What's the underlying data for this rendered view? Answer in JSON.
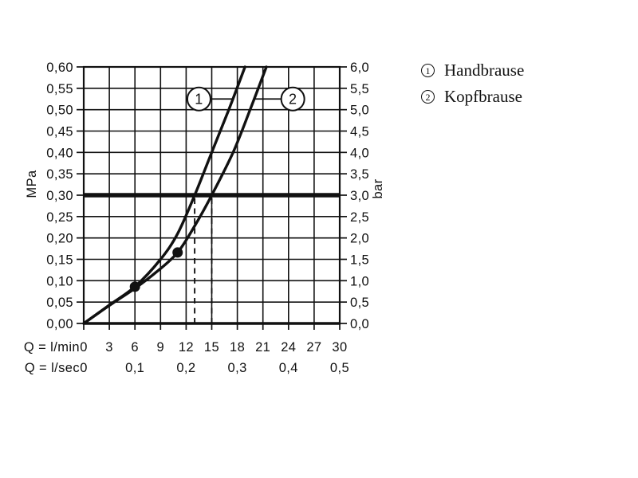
{
  "legend": {
    "items": [
      {
        "symbol": "1",
        "label": "Handbrause"
      },
      {
        "symbol": "2",
        "label": "Kopfbrause"
      }
    ]
  },
  "chart_data": {
    "type": "line",
    "title": "",
    "description": "Flow rate vs pressure performance curves",
    "xlim_lmin": [
      0,
      30
    ],
    "ylim_mpa": [
      0,
      0.6
    ],
    "grid": true,
    "x_axis_rows": [
      {
        "label": "Q = l/min",
        "ticks": [
          {
            "label": "0",
            "q": 0
          },
          {
            "label": "3",
            "q": 3
          },
          {
            "label": "6",
            "q": 6
          },
          {
            "label": "9",
            "q": 9
          },
          {
            "label": "12",
            "q": 12
          },
          {
            "label": "15",
            "q": 15
          },
          {
            "label": "18",
            "q": 18
          },
          {
            "label": "21",
            "q": 21
          },
          {
            "label": "24",
            "q": 24
          },
          {
            "label": "27",
            "q": 27
          },
          {
            "label": "30",
            "q": 30
          }
        ]
      },
      {
        "label": "Q = l/sec",
        "ticks": [
          {
            "label": "0",
            "q": 0
          },
          {
            "label": "0,1",
            "q": 6
          },
          {
            "label": "0,2",
            "q": 12
          },
          {
            "label": "0,3",
            "q": 18
          },
          {
            "label": "0,4",
            "q": 24
          },
          {
            "label": "0,5",
            "q": 30
          }
        ]
      }
    ],
    "y_axis_left": {
      "title": "MPa",
      "ticks": [
        {
          "label": "0,60",
          "p": 0.6
        },
        {
          "label": "0,55",
          "p": 0.55
        },
        {
          "label": "0,50",
          "p": 0.5
        },
        {
          "label": "0,45",
          "p": 0.45
        },
        {
          "label": "0,40",
          "p": 0.4
        },
        {
          "label": "0,35",
          "p": 0.35
        },
        {
          "label": "0,30",
          "p": 0.3
        },
        {
          "label": "0,25",
          "p": 0.25
        },
        {
          "label": "0,20",
          "p": 0.2
        },
        {
          "label": "0,15",
          "p": 0.15
        },
        {
          "label": "0,10",
          "p": 0.1
        },
        {
          "label": "0,05",
          "p": 0.05
        },
        {
          "label": "0,00",
          "p": 0.0
        }
      ]
    },
    "y_axis_right": {
      "title": "bar",
      "ticks": [
        {
          "label": "6,0",
          "p": 0.6
        },
        {
          "label": "5,5",
          "p": 0.55
        },
        {
          "label": "5,0",
          "p": 0.5
        },
        {
          "label": "4,5",
          "p": 0.45
        },
        {
          "label": "4,0",
          "p": 0.4
        },
        {
          "label": "3,5",
          "p": 0.35
        },
        {
          "label": "3,0",
          "p": 0.3
        },
        {
          "label": "2,5",
          "p": 0.25
        },
        {
          "label": "2,0",
          "p": 0.2
        },
        {
          "label": "1,5",
          "p": 0.15
        },
        {
          "label": "1,0",
          "p": 0.1
        },
        {
          "label": "0,5",
          "p": 0.05
        },
        {
          "label": "0,0",
          "p": 0.0
        }
      ]
    },
    "reference_line": {
      "p_mpa": 0.3,
      "p_bar": 3.0
    },
    "dashed_lines": [
      {
        "q_lmin": 13,
        "from_p": 0.3,
        "to_p": 0
      },
      {
        "q_lmin": 15,
        "from_p": 0.3,
        "to_p": 0
      }
    ],
    "series": [
      {
        "id": "1",
        "name": "Handbrause",
        "points": [
          [
            0,
            0
          ],
          [
            3,
            0.043
          ],
          [
            6,
            0.086
          ],
          [
            9,
            0.15
          ],
          [
            11,
            0.21
          ],
          [
            13,
            0.3
          ],
          [
            15,
            0.4
          ],
          [
            17,
            0.5
          ],
          [
            18.9,
            0.6
          ]
        ]
      },
      {
        "id": "2",
        "name": "Kopfbrause",
        "points": [
          [
            0,
            0
          ],
          [
            3,
            0.042
          ],
          [
            6,
            0.082
          ],
          [
            8.5,
            0.12
          ],
          [
            11,
            0.166
          ],
          [
            13,
            0.228
          ],
          [
            15,
            0.3
          ],
          [
            17.5,
            0.4
          ],
          [
            19.5,
            0.5
          ],
          [
            21.4,
            0.6
          ]
        ]
      }
    ],
    "dots": [
      {
        "q": 6,
        "p": 0.086
      },
      {
        "q": 11,
        "p": 0.166
      }
    ],
    "curve_labels": [
      {
        "symbol": "1",
        "q": 13.5,
        "p": 0.525,
        "leader_to_q": 17.4,
        "leader_side": "right"
      },
      {
        "symbol": "2",
        "q": 24.5,
        "p": 0.525,
        "leader_to_q": 19.9,
        "leader_side": "left"
      }
    ],
    "colors": {
      "ink": "#111111",
      "background": "#ffffff"
    }
  }
}
